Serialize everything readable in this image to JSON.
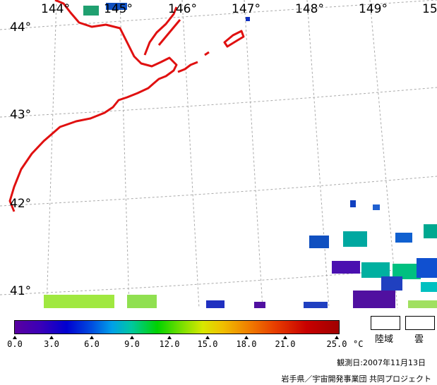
{
  "map": {
    "longitude_labels": [
      "144°",
      "145°",
      "146°",
      "147°",
      "148°",
      "149°",
      "15"
    ],
    "latitude_labels": [
      "44°",
      "43°",
      "42°",
      "41°"
    ],
    "coast_color": "#e01010",
    "grid_color": "#aaaaaa"
  },
  "legend": {
    "ticks": [
      "0.0",
      "3.0",
      "6.0",
      "9.0",
      "12.0",
      "15.0",
      "18.0",
      "21.0",
      "25.0"
    ],
    "unit": "°C",
    "land_label": "陸域",
    "cloud_label": "雲"
  },
  "footer": {
    "observation_date": "観測日:2007年11月13日",
    "credit": "岩手県／宇宙開発事業団 共同プロジェクト"
  }
}
